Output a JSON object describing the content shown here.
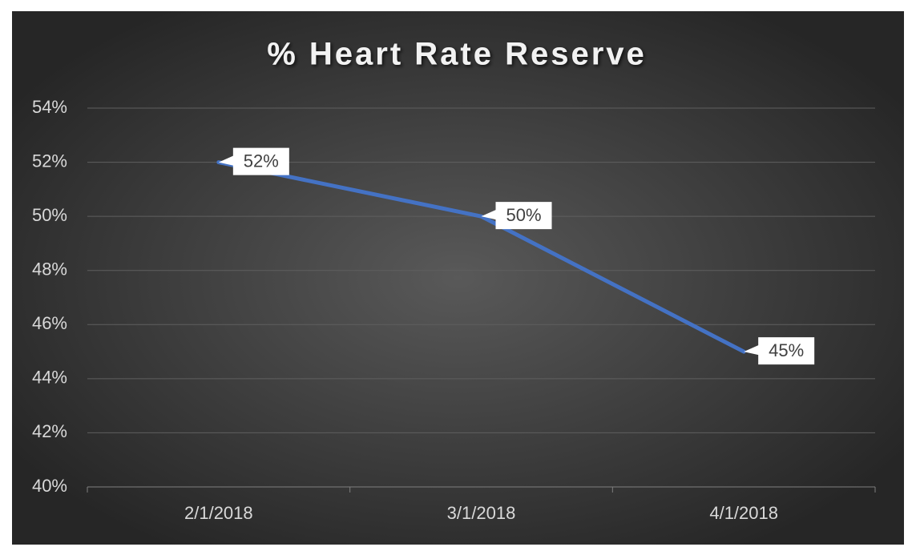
{
  "chart_data": {
    "type": "line",
    "title": "% Heart Rate Reserve",
    "categories": [
      "2/1/2018",
      "3/1/2018",
      "4/1/2018"
    ],
    "series": [
      {
        "name": "% Heart Rate Reserve",
        "color": "#4472c4",
        "values": [
          52,
          50,
          45
        ],
        "value_labels": [
          "52%",
          "50%",
          "45%"
        ]
      }
    ],
    "ylim": [
      40,
      54
    ],
    "yticks": [
      {
        "value": 40,
        "label": "40%"
      },
      {
        "value": 42,
        "label": "42%"
      },
      {
        "value": 44,
        "label": "44%"
      },
      {
        "value": 46,
        "label": "46%"
      },
      {
        "value": 48,
        "label": "48%"
      },
      {
        "value": 50,
        "label": "50%"
      },
      {
        "value": 52,
        "label": "52%"
      },
      {
        "value": 54,
        "label": "54%"
      }
    ],
    "grid": true
  }
}
